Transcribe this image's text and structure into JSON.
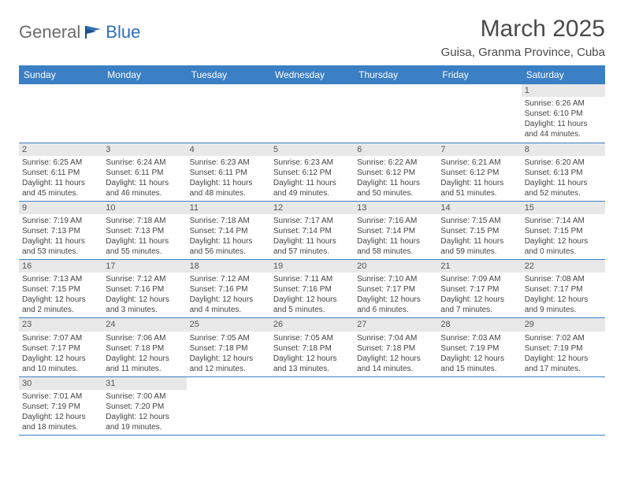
{
  "logo": {
    "first": "General",
    "second": "Blue"
  },
  "title": {
    "month": "March 2025",
    "location": "Guisa, Granma Province, Cuba"
  },
  "colors": {
    "header_bg": "#3b7fc4",
    "header_text": "#ffffff",
    "divider": "#3b7fc4",
    "daynum_bg": "#e8e8e8",
    "text": "#444444",
    "logo_gray": "#6b6b6b",
    "logo_blue": "#2d6fb7"
  },
  "weekdays": [
    "Sunday",
    "Monday",
    "Tuesday",
    "Wednesday",
    "Thursday",
    "Friday",
    "Saturday"
  ],
  "weeks": [
    [
      null,
      null,
      null,
      null,
      null,
      null,
      {
        "n": "1",
        "sr": "Sunrise: 6:26 AM",
        "ss": "Sunset: 6:10 PM",
        "d1": "Daylight: 11 hours",
        "d2": "and 44 minutes."
      }
    ],
    [
      {
        "n": "2",
        "sr": "Sunrise: 6:25 AM",
        "ss": "Sunset: 6:11 PM",
        "d1": "Daylight: 11 hours",
        "d2": "and 45 minutes."
      },
      {
        "n": "3",
        "sr": "Sunrise: 6:24 AM",
        "ss": "Sunset: 6:11 PM",
        "d1": "Daylight: 11 hours",
        "d2": "and 46 minutes."
      },
      {
        "n": "4",
        "sr": "Sunrise: 6:23 AM",
        "ss": "Sunset: 6:11 PM",
        "d1": "Daylight: 11 hours",
        "d2": "and 48 minutes."
      },
      {
        "n": "5",
        "sr": "Sunrise: 6:23 AM",
        "ss": "Sunset: 6:12 PM",
        "d1": "Daylight: 11 hours",
        "d2": "and 49 minutes."
      },
      {
        "n": "6",
        "sr": "Sunrise: 6:22 AM",
        "ss": "Sunset: 6:12 PM",
        "d1": "Daylight: 11 hours",
        "d2": "and 50 minutes."
      },
      {
        "n": "7",
        "sr": "Sunrise: 6:21 AM",
        "ss": "Sunset: 6:12 PM",
        "d1": "Daylight: 11 hours",
        "d2": "and 51 minutes."
      },
      {
        "n": "8",
        "sr": "Sunrise: 6:20 AM",
        "ss": "Sunset: 6:13 PM",
        "d1": "Daylight: 11 hours",
        "d2": "and 52 minutes."
      }
    ],
    [
      {
        "n": "9",
        "sr": "Sunrise: 7:19 AM",
        "ss": "Sunset: 7:13 PM",
        "d1": "Daylight: 11 hours",
        "d2": "and 53 minutes."
      },
      {
        "n": "10",
        "sr": "Sunrise: 7:18 AM",
        "ss": "Sunset: 7:13 PM",
        "d1": "Daylight: 11 hours",
        "d2": "and 55 minutes."
      },
      {
        "n": "11",
        "sr": "Sunrise: 7:18 AM",
        "ss": "Sunset: 7:14 PM",
        "d1": "Daylight: 11 hours",
        "d2": "and 56 minutes."
      },
      {
        "n": "12",
        "sr": "Sunrise: 7:17 AM",
        "ss": "Sunset: 7:14 PM",
        "d1": "Daylight: 11 hours",
        "d2": "and 57 minutes."
      },
      {
        "n": "13",
        "sr": "Sunrise: 7:16 AM",
        "ss": "Sunset: 7:14 PM",
        "d1": "Daylight: 11 hours",
        "d2": "and 58 minutes."
      },
      {
        "n": "14",
        "sr": "Sunrise: 7:15 AM",
        "ss": "Sunset: 7:15 PM",
        "d1": "Daylight: 11 hours",
        "d2": "and 59 minutes."
      },
      {
        "n": "15",
        "sr": "Sunrise: 7:14 AM",
        "ss": "Sunset: 7:15 PM",
        "d1": "Daylight: 12 hours",
        "d2": "and 0 minutes."
      }
    ],
    [
      {
        "n": "16",
        "sr": "Sunrise: 7:13 AM",
        "ss": "Sunset: 7:15 PM",
        "d1": "Daylight: 12 hours",
        "d2": "and 2 minutes."
      },
      {
        "n": "17",
        "sr": "Sunrise: 7:12 AM",
        "ss": "Sunset: 7:16 PM",
        "d1": "Daylight: 12 hours",
        "d2": "and 3 minutes."
      },
      {
        "n": "18",
        "sr": "Sunrise: 7:12 AM",
        "ss": "Sunset: 7:16 PM",
        "d1": "Daylight: 12 hours",
        "d2": "and 4 minutes."
      },
      {
        "n": "19",
        "sr": "Sunrise: 7:11 AM",
        "ss": "Sunset: 7:16 PM",
        "d1": "Daylight: 12 hours",
        "d2": "and 5 minutes."
      },
      {
        "n": "20",
        "sr": "Sunrise: 7:10 AM",
        "ss": "Sunset: 7:17 PM",
        "d1": "Daylight: 12 hours",
        "d2": "and 6 minutes."
      },
      {
        "n": "21",
        "sr": "Sunrise: 7:09 AM",
        "ss": "Sunset: 7:17 PM",
        "d1": "Daylight: 12 hours",
        "d2": "and 7 minutes."
      },
      {
        "n": "22",
        "sr": "Sunrise: 7:08 AM",
        "ss": "Sunset: 7:17 PM",
        "d1": "Daylight: 12 hours",
        "d2": "and 9 minutes."
      }
    ],
    [
      {
        "n": "23",
        "sr": "Sunrise: 7:07 AM",
        "ss": "Sunset: 7:17 PM",
        "d1": "Daylight: 12 hours",
        "d2": "and 10 minutes."
      },
      {
        "n": "24",
        "sr": "Sunrise: 7:06 AM",
        "ss": "Sunset: 7:18 PM",
        "d1": "Daylight: 12 hours",
        "d2": "and 11 minutes."
      },
      {
        "n": "25",
        "sr": "Sunrise: 7:05 AM",
        "ss": "Sunset: 7:18 PM",
        "d1": "Daylight: 12 hours",
        "d2": "and 12 minutes."
      },
      {
        "n": "26",
        "sr": "Sunrise: 7:05 AM",
        "ss": "Sunset: 7:18 PM",
        "d1": "Daylight: 12 hours",
        "d2": "and 13 minutes."
      },
      {
        "n": "27",
        "sr": "Sunrise: 7:04 AM",
        "ss": "Sunset: 7:18 PM",
        "d1": "Daylight: 12 hours",
        "d2": "and 14 minutes."
      },
      {
        "n": "28",
        "sr": "Sunrise: 7:03 AM",
        "ss": "Sunset: 7:19 PM",
        "d1": "Daylight: 12 hours",
        "d2": "and 15 minutes."
      },
      {
        "n": "29",
        "sr": "Sunrise: 7:02 AM",
        "ss": "Sunset: 7:19 PM",
        "d1": "Daylight: 12 hours",
        "d2": "and 17 minutes."
      }
    ],
    [
      {
        "n": "30",
        "sr": "Sunrise: 7:01 AM",
        "ss": "Sunset: 7:19 PM",
        "d1": "Daylight: 12 hours",
        "d2": "and 18 minutes."
      },
      {
        "n": "31",
        "sr": "Sunrise: 7:00 AM",
        "ss": "Sunset: 7:20 PM",
        "d1": "Daylight: 12 hours",
        "d2": "and 19 minutes."
      },
      null,
      null,
      null,
      null,
      null
    ]
  ]
}
